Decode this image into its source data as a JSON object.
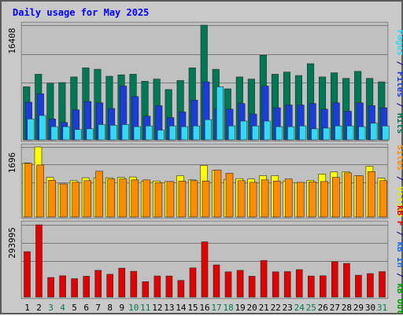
{
  "chart_data": {
    "type": "bar",
    "title": "Daily usage for May 2025",
    "categories": [
      "1",
      "2",
      "3",
      "4",
      "5",
      "6",
      "7",
      "8",
      "9",
      "10",
      "11",
      "12",
      "13",
      "14",
      "15",
      "16",
      "17",
      "18",
      "19",
      "20",
      "21",
      "22",
      "23",
      "24",
      "25",
      "26",
      "27",
      "28",
      "29",
      "30",
      "31"
    ],
    "weekend_days": [
      "3",
      "4",
      "10",
      "11",
      "17",
      "18",
      "24",
      "25",
      "31"
    ],
    "panels": [
      {
        "max_label": "16408",
        "ylim": [
          0,
          16408
        ],
        "series": [
          {
            "name": "Hits",
            "color": "#007854",
            "values": [
              7600,
              9400,
              8100,
              8200,
              9000,
              10300,
              10100,
              9100,
              9300,
              9400,
              8400,
              8700,
              7200,
              8500,
              10300,
              16408,
              10100,
              7300,
              9000,
              8700,
              12100,
              9400,
              9700,
              9200,
              10900,
              9000,
              9600,
              8800,
              9800,
              8800,
              8300
            ]
          },
          {
            "name": "Files",
            "color": "#1a3cdb",
            "values": [
              5400,
              6600,
              3000,
              2500,
              4300,
              5500,
              5300,
              4500,
              7700,
              6200,
              3400,
              4900,
              3200,
              4000,
              5700,
              8300,
              4500,
              4400,
              5200,
              3700,
              7700,
              4600,
              5000,
              5000,
              5200,
              4400,
              5300,
              4100,
              5300,
              4900,
              4600
            ]
          },
          {
            "name": "Pages",
            "color": "#33d9f4",
            "values": [
              3000,
              3500,
              1900,
              1900,
              1500,
              1600,
              2200,
              2100,
              2200,
              1900,
              2000,
              1400,
              2000,
              1900,
              2000,
              2900,
              7600,
              2000,
              2700,
              2000,
              2700,
              1900,
              1900,
              2000,
              1600,
              1700,
              2000,
              2000,
              1900,
              2400,
              2000
            ]
          }
        ]
      },
      {
        "max_label": "1696",
        "ylim": [
          0,
          1696
        ],
        "series": [
          {
            "name": "Visits",
            "color": "#ffff00",
            "values": [
              1310,
              1696,
              960,
              800,
              880,
              950,
              950,
              950,
              960,
              970,
              870,
              870,
              860,
              1000,
              900,
              1250,
              1130,
              910,
              930,
              920,
              1000,
              1000,
              870,
              830,
              890,
              1040,
              1090,
              1100,
              1000,
              1230,
              940
            ]
          },
          {
            "name": "Sites",
            "color": "#ff8c00",
            "values": [
              1300,
              1260,
              890,
              800,
              840,
              880,
              1110,
              920,
              920,
              900,
              900,
              830,
              860,
              870,
              880,
              870,
              1140,
              1060,
              880,
              840,
              900,
              870,
              920,
              840,
              850,
              860,
              960,
              1070,
              1000,
              1100,
              880
            ]
          }
        ]
      },
      {
        "max_label": "293995",
        "ylim": [
          0,
          293995
        ],
        "series": [
          {
            "name": "KB F",
            "color": "#e40000",
            "values": [
              185000,
              293995,
              80000,
              87000,
              75000,
              85000,
              109000,
              93000,
              118000,
              105000,
              63000,
              86000,
              86000,
              68000,
              119000,
              225000,
              131000,
              103000,
              109000,
              85000,
              149000,
              103000,
              104000,
              112000,
              86000,
              87000,
              144000,
              137000,
              89000,
              96000,
              104000
            ]
          }
        ]
      }
    ],
    "side_labels": {
      "panel1": [
        {
          "text": "Pages",
          "color": "#33d9f4"
        },
        {
          "text": " / ",
          "color": "#000080"
        },
        {
          "text": "Files",
          "color": "#1a3cdb"
        },
        {
          "text": " / ",
          "color": "#000080"
        },
        {
          "text": "Hits",
          "color": "#007854"
        }
      ],
      "panel2": [
        {
          "text": "Sites",
          "color": "#ff8c00"
        },
        {
          "text": " / ",
          "color": "#000080"
        },
        {
          "text": "Visits",
          "color": "#e8e800"
        }
      ],
      "panel3": [
        {
          "text": "kB F",
          "color": "#e40000"
        },
        {
          "text": " / ",
          "color": "#000080"
        },
        {
          "text": "kB In",
          "color": "#1a6ae0"
        },
        {
          "text": " / ",
          "color": "#000080"
        },
        {
          "text": "kB Out",
          "color": "#00a000"
        }
      ]
    },
    "colors": {
      "title": "#0000ff",
      "weekday": "#000000",
      "weekend": "#007854",
      "plot_bg": "#c0c0c0",
      "outer_bg": "#c9c9c9",
      "gridline": "#7a7a7a"
    }
  }
}
